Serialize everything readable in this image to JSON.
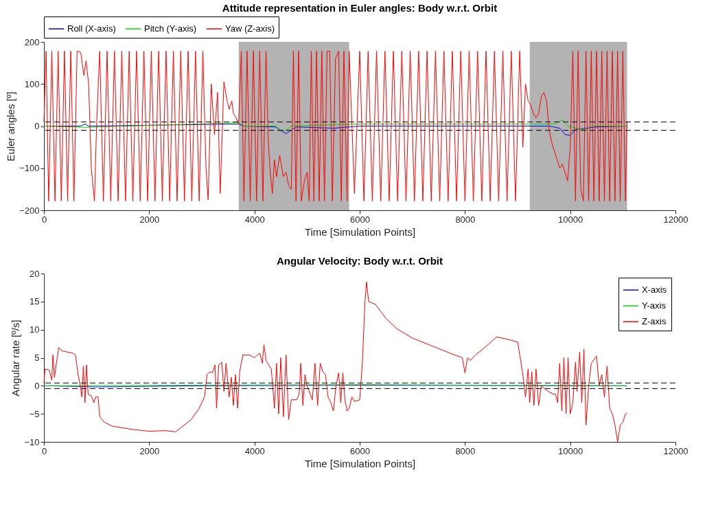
{
  "chart_data": [
    {
      "type": "line",
      "title": "Attitude representation in Euler angles: Body w.r.t. Orbit",
      "xlabel": "Time [Simulation Points]",
      "ylabel": "Euler angles [º]",
      "xlim": [
        0,
        12000
      ],
      "xticks": [
        0,
        2000,
        4000,
        6000,
        8000,
        10000,
        12000
      ],
      "ylim": [
        -200,
        200
      ],
      "yticks": [
        -200,
        -100,
        0,
        100,
        200
      ],
      "legend": "top",
      "bands": [
        {
          "axis": "x",
          "from": 3700,
          "to": 5800,
          "color": "#b3b3b3"
        },
        {
          "axis": "x",
          "from": 9230,
          "to": 11080,
          "color": "#b3b3b3"
        }
      ],
      "ref_lines": [
        {
          "axis": "y",
          "value": 10,
          "color": "#000000",
          "line_style": "dashed"
        },
        {
          "axis": "y",
          "value": -10,
          "color": "#000000",
          "line_style": "dashed"
        }
      ],
      "series": [
        {
          "name": "Roll (X-axis)",
          "color": "#0000ff",
          "x": [
            0,
            700,
            780,
            850,
            3700,
            3800,
            4400,
            4500,
            4600,
            4700,
            4800,
            5500,
            6000,
            9600,
            9800,
            9900,
            10000,
            10100,
            10300,
            10500,
            11080
          ],
          "values": [
            0,
            0,
            5,
            0,
            5,
            0,
            -2,
            -10,
            -18,
            -10,
            -2,
            -5,
            0,
            0,
            -5,
            -20,
            -22,
            -8,
            -5,
            -2,
            0
          ]
        },
        {
          "name": "Pitch (Y-axis)",
          "color": "#00dd00",
          "x": [
            0,
            800,
            3700,
            3800,
            4400,
            4500,
            4600,
            4700,
            6000,
            9700,
            9850,
            9950,
            10300,
            10400,
            11080
          ],
          "values": [
            0,
            -3,
            8,
            0,
            0,
            -10,
            -10,
            0,
            5,
            5,
            15,
            0,
            -10,
            0,
            0
          ]
        },
        {
          "name": "Yaw (Z-axis)",
          "color": "#ff0000",
          "x": [
            0,
            40,
            90,
            150,
            210,
            270,
            330,
            390,
            450,
            510,
            570,
            630,
            700,
            760,
            800,
            850,
            900,
            960,
            1000,
            1060,
            1130,
            1200,
            1270,
            1340,
            1410,
            1480,
            1550,
            1620,
            1690,
            1760,
            1830,
            1900,
            1970,
            2040,
            2110,
            2180,
            2250,
            2320,
            2390,
            2460,
            2530,
            2600,
            2670,
            2740,
            2810,
            2880,
            2950,
            3020,
            3080,
            3120,
            3180,
            3240,
            3300,
            3350,
            3420,
            3480,
            3520,
            3570,
            3600,
            3650,
            3700,
            3750,
            3800,
            3860,
            3920,
            3980,
            4040,
            4100,
            4160,
            4220,
            4260,
            4300,
            4340,
            4380,
            4420,
            4480,
            4550,
            4600,
            4650,
            4700,
            4740,
            4790,
            4840,
            4890,
            4950,
            5000,
            5040,
            5080,
            5130,
            5180,
            5230,
            5280,
            5330,
            5380,
            5430,
            5480,
            5540,
            5600,
            5650,
            5700,
            5760,
            5800,
            5900,
            6000,
            6080,
            6160,
            6240,
            6320,
            6400,
            6480,
            6560,
            6640,
            6720,
            6800,
            6880,
            6960,
            7040,
            7120,
            7200,
            7280,
            7360,
            7440,
            7520,
            7600,
            7680,
            7760,
            7840,
            7920,
            8000,
            8080,
            8160,
            8240,
            8320,
            8400,
            8480,
            8560,
            8640,
            8720,
            8800,
            8880,
            8960,
            9040,
            9100,
            9150,
            9200,
            9250,
            9300,
            9350,
            9400,
            9450,
            9500,
            9550,
            9600,
            9650,
            9700,
            9750,
            9800,
            9850,
            9900,
            9950,
            10000,
            10050,
            10100,
            10150,
            10200,
            10250,
            10300,
            10350,
            10400,
            10450,
            10500,
            10550,
            10600,
            10650,
            10700,
            10750,
            10800,
            10850,
            10900,
            10950,
            11000,
            11050,
            11080
          ],
          "values": [
            10,
            178,
            -178,
            178,
            -178,
            178,
            -178,
            178,
            -178,
            178,
            -178,
            178,
            175,
            120,
            155,
            100,
            -100,
            -178,
            0,
            178,
            -178,
            178,
            -178,
            178,
            -178,
            178,
            -178,
            178,
            -178,
            178,
            -178,
            178,
            -178,
            178,
            -178,
            178,
            -178,
            178,
            -178,
            178,
            -178,
            178,
            -178,
            178,
            -178,
            178,
            -178,
            178,
            -100,
            -175,
            100,
            -20,
            80,
            -160,
            105,
            60,
            40,
            60,
            30,
            20,
            5,
            178,
            -178,
            178,
            -178,
            178,
            -178,
            178,
            -178,
            178,
            -30,
            -110,
            -160,
            -80,
            -120,
            -70,
            -120,
            -110,
            -140,
            -150,
            178,
            -178,
            178,
            -178,
            -130,
            -110,
            -178,
            178,
            -178,
            178,
            -178,
            178,
            -178,
            178,
            178,
            -178,
            160,
            178,
            -178,
            178,
            -178,
            178,
            -160,
            178,
            -178,
            178,
            -178,
            178,
            -178,
            178,
            -178,
            178,
            -178,
            178,
            -178,
            178,
            -178,
            178,
            -178,
            178,
            -178,
            178,
            -178,
            178,
            -178,
            178,
            -178,
            178,
            -178,
            178,
            -178,
            178,
            -178,
            178,
            -178,
            178,
            -178,
            178,
            -178,
            178,
            -178,
            178,
            -50,
            100,
            60,
            50,
            30,
            20,
            30,
            70,
            80,
            60,
            -10,
            -40,
            -60,
            -80,
            -100,
            -90,
            -110,
            -130,
            -50,
            178,
            -178,
            178,
            -150,
            -178,
            178,
            -178,
            178,
            -178,
            178,
            -178,
            178,
            -178,
            178,
            -178,
            178,
            -178,
            178,
            -178,
            178,
            -178,
            10
          ]
        }
      ]
    },
    {
      "type": "line",
      "title": "Angular Velocity: Body w.r.t. Orbit",
      "xlabel": "Time [Simulation Points]",
      "ylabel": "Angular rate [º/s]",
      "xlim": [
        0,
        12000
      ],
      "xticks": [
        0,
        2000,
        4000,
        6000,
        8000,
        10000,
        12000
      ],
      "ylim": [
        -10,
        20
      ],
      "yticks": [
        -10,
        -5,
        0,
        5,
        10,
        15,
        20
      ],
      "legend": "top right",
      "ref_lines": [
        {
          "axis": "y",
          "value": 0.5,
          "color": "#000000",
          "line_style": "dashed"
        },
        {
          "axis": "y",
          "value": -0.5,
          "color": "#000000",
          "line_style": "dashed"
        }
      ],
      "series": [
        {
          "name": "X-axis",
          "color": "#0000ff",
          "x": [
            0,
            1000,
            3000,
            6000,
            11080
          ],
          "values": [
            0,
            -0.2,
            0,
            0.1,
            0
          ]
        },
        {
          "name": "Y-axis",
          "color": "#00dd00",
          "x": [
            0,
            2000,
            6130,
            11080
          ],
          "values": [
            0,
            0.1,
            0.2,
            0
          ]
        },
        {
          "name": "Z-axis",
          "color": "#ff0000",
          "x": [
            0,
            20,
            100,
            150,
            170,
            200,
            280,
            350,
            550,
            600,
            620,
            650,
            700,
            720,
            750,
            780,
            810,
            840,
            900,
            950,
            980,
            1030,
            1060,
            1150,
            1300,
            1500,
            1700,
            2000,
            2300,
            2500,
            2600,
            2800,
            2950,
            3050,
            3100,
            3150,
            3200,
            3250,
            3280,
            3320,
            3380,
            3420,
            3460,
            3520,
            3560,
            3600,
            3640,
            3680,
            3720,
            3780,
            3900,
            4000,
            4100,
            4150,
            4180,
            4220,
            4320,
            4380,
            4420,
            4460,
            4500,
            4550,
            4600,
            4650,
            4700,
            4800,
            4850,
            4880,
            4920,
            4960,
            5000,
            5100,
            5150,
            5200,
            5250,
            5300,
            5350,
            5400,
            5450,
            5500,
            5550,
            5600,
            5640,
            5680,
            5720,
            5760,
            5800,
            5850,
            5900,
            6000,
            6050,
            6100,
            6130,
            6170,
            6300,
            6500,
            6700,
            7000,
            7400,
            7800,
            7950,
            8000,
            8050,
            8100,
            8200,
            8400,
            8600,
            8800,
            9000,
            9050,
            9100,
            9150,
            9200,
            9230,
            9270,
            9310,
            9350,
            9400,
            9450,
            9550,
            9680,
            9720,
            9760,
            9800,
            9840,
            9880,
            9920,
            9960,
            10000,
            10050,
            10100,
            10130,
            10180,
            10220,
            10260,
            10300,
            10350,
            10400,
            10500,
            10550,
            10600,
            10650,
            10700,
            10750,
            10800,
            10850,
            10900,
            10950,
            11000,
            11050,
            11080
          ],
          "values": [
            0.5,
            3,
            2.8,
            1,
            5.5,
            1.5,
            6.8,
            6.2,
            5.8,
            5.5,
            4,
            2,
            -0.5,
            -2,
            3.5,
            -3,
            3.7,
            -1.5,
            -1.8,
            -3,
            -2,
            -2,
            -5.5,
            -6.5,
            -7.2,
            -7.5,
            -7.8,
            -8.1,
            -8,
            -8.2,
            -7.5,
            -6,
            -4,
            -2,
            2,
            2.5,
            2.3,
            3.7,
            -4,
            3.7,
            4.2,
            -1,
            4,
            -2,
            1.5,
            -3.5,
            2,
            -4,
            2.5,
            5.5,
            5.5,
            5,
            5.8,
            4,
            7.3,
            4.5,
            3,
            -4,
            4,
            -5,
            5,
            -5.5,
            5.5,
            -6,
            -2.5,
            -2.5,
            -1.5,
            4,
            -3.5,
            2,
            0,
            -2.5,
            4,
            -3.5,
            4,
            2.5,
            2,
            -2,
            -3,
            -4.5,
            0,
            2.3,
            -3,
            2.3,
            -2.5,
            -4.5,
            -4,
            -2,
            -2.8,
            -2.5,
            4,
            15,
            18.5,
            15,
            14.5,
            12,
            10.2,
            8.5,
            7,
            5.5,
            5,
            2.3,
            5,
            4.5,
            5.5,
            7,
            8.7,
            8.3,
            7.8,
            5,
            2,
            -2,
            3,
            -3,
            2.5,
            -3.5,
            3,
            -3.5,
            0,
            -0.8,
            -1.5,
            -1.5,
            -3,
            4,
            -4.5,
            5,
            -5,
            5,
            -5,
            -3,
            4.2,
            -1,
            6,
            -3,
            6.5,
            -7,
            0,
            4,
            5.3,
            0,
            2,
            -2,
            3.5,
            -4,
            -5,
            -7,
            -10,
            -7,
            -6.5,
            -5,
            -4.8
          ]
        }
      ]
    }
  ]
}
